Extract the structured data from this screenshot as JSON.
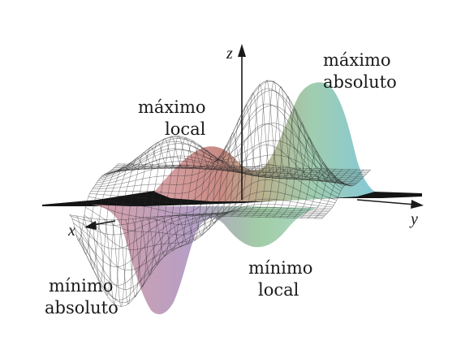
{
  "axes": {
    "x": "x",
    "y": "y",
    "z": "z"
  },
  "annotations": {
    "max_abs": [
      "máximo",
      "absoluto"
    ],
    "max_loc": [
      "máximo",
      "local"
    ],
    "min_loc": [
      "mínimo",
      "local"
    ],
    "min_abs": [
      "mínimo",
      "absoluto"
    ]
  },
  "icons": [
    "x-axis-arrow-icon",
    "y-axis-arrow-icon",
    "z-axis-arrow-icon"
  ],
  "colors": {
    "mesh_line": "#2b2b2b",
    "surface_peak": "#8fd1dc",
    "surface_red": "#e6a8a4",
    "surface_green": "#a7cfa8",
    "surface_purple": "#b7a6cc",
    "flat_plane": "#111111"
  }
}
